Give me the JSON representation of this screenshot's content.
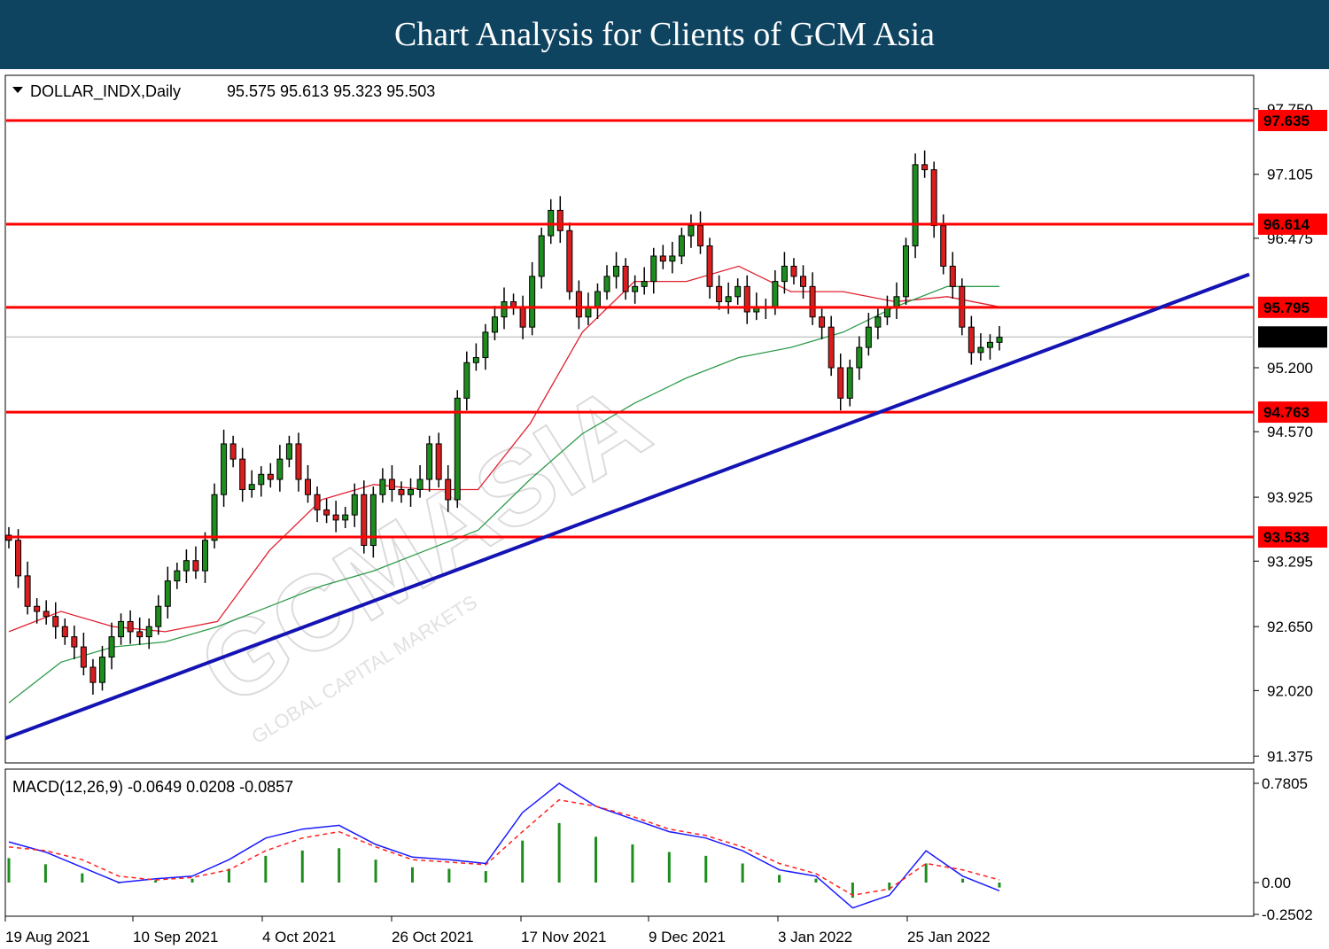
{
  "header": {
    "title": "Chart Analysis for Clients of GCM Asia"
  },
  "chart_data": {
    "type": "candlestick",
    "symbol": "DOLLAR_INDX,Daily",
    "ohlc_last": "95.575 95.613 95.323 95.503",
    "last_price": 95.503,
    "y_range": [
      91.3,
      97.8
    ],
    "y_ticks": [
      "97.750",
      "97.105",
      "96.475",
      "95.200",
      "94.570",
      "93.925",
      "93.295",
      "92.650",
      "92.020",
      "91.375"
    ],
    "x_labels": [
      "19 Aug 2021",
      "10 Sep 2021",
      "4 Oct 2021",
      "26 Oct 2021",
      "17 Nov 2021",
      "9 Dec 2021",
      "3 Jan 2022",
      "25 Jan 2022"
    ],
    "resistance_support_levels": [
      97.635,
      96.614,
      95.795,
      94.763,
      93.533
    ],
    "level_labels": [
      "97.635",
      "96.614",
      "95.795",
      "94.763",
      "93.533"
    ],
    "trendline": {
      "start": {
        "date": "2021-08-16",
        "value": 91.55
      },
      "end": {
        "date": "2022-02-08",
        "value": 96.12
      }
    },
    "candles_close": [
      93.5,
      93.15,
      92.85,
      92.8,
      92.75,
      92.65,
      92.55,
      92.45,
      92.25,
      92.1,
      92.35,
      92.55,
      92.7,
      92.6,
      92.55,
      92.65,
      92.85,
      93.1,
      93.2,
      93.3,
      93.2,
      93.5,
      93.95,
      94.45,
      94.3,
      94.0,
      94.05,
      94.15,
      94.1,
      94.3,
      94.45,
      94.1,
      93.95,
      93.8,
      93.75,
      93.7,
      93.75,
      93.95,
      93.45,
      93.95,
      94.1,
      94.0,
      93.95,
      94.0,
      94.1,
      94.45,
      94.1,
      93.9,
      94.9,
      95.25,
      95.3,
      95.55,
      95.7,
      95.85,
      95.8,
      95.6,
      96.1,
      96.5,
      96.75,
      96.55,
      95.95,
      95.7,
      95.8,
      95.95,
      96.1,
      96.2,
      95.95,
      96.0,
      96.05,
      96.3,
      96.25,
      96.3,
      96.5,
      96.6,
      96.4,
      96.0,
      95.85,
      95.9,
      96.0,
      95.75,
      95.8,
      95.8,
      96.05,
      96.2,
      96.1,
      96.0,
      95.7,
      95.6,
      95.2,
      94.9,
      95.2,
      95.4,
      95.6,
      95.7,
      95.8,
      95.9,
      96.4,
      97.2,
      97.15,
      96.6,
      96.2,
      96.0,
      95.6,
      95.35,
      95.4,
      95.45,
      95.5
    ],
    "ma_red_close": [
      92.6,
      92.8,
      92.65,
      92.6,
      92.7,
      93.4,
      93.9,
      94.05,
      94.0,
      94.0,
      94.65,
      95.55,
      96.05,
      96.05,
      96.2,
      95.95,
      95.95,
      95.85,
      95.9,
      95.8
    ],
    "ma_green_close": [
      91.9,
      92.3,
      92.45,
      92.5,
      92.65,
      92.85,
      93.05,
      93.2,
      93.4,
      93.6,
      94.1,
      94.55,
      94.85,
      95.1,
      95.3,
      95.4,
      95.55,
      95.8,
      96.0,
      96.0
    ],
    "macd": {
      "label": "MACD(12,26,9) -0.0649 0.0208 -0.0857",
      "y_ticks": [
        "0.7805",
        "0.00",
        "-0.2502"
      ],
      "main": [
        0.32,
        0.24,
        0.12,
        0.0,
        0.03,
        0.05,
        0.18,
        0.35,
        0.42,
        0.45,
        0.3,
        0.2,
        0.18,
        0.15,
        0.55,
        0.78,
        0.6,
        0.5,
        0.4,
        0.35,
        0.25,
        0.1,
        0.05,
        -0.2,
        -0.1,
        0.25,
        0.05,
        -0.0649
      ],
      "signal": [
        0.28,
        0.25,
        0.18,
        0.05,
        0.02,
        0.04,
        0.1,
        0.25,
        0.35,
        0.4,
        0.28,
        0.18,
        0.16,
        0.14,
        0.4,
        0.65,
        0.6,
        0.52,
        0.42,
        0.37,
        0.28,
        0.15,
        0.07,
        -0.1,
        -0.05,
        0.15,
        0.1,
        0.0208
      ]
    }
  }
}
